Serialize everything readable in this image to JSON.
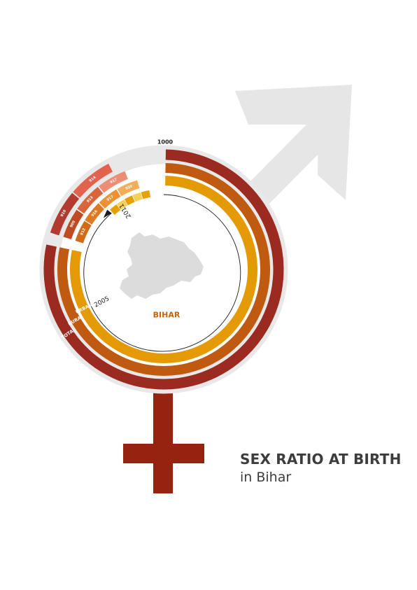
{
  "chart_data": {
    "type": "radial-bar",
    "title": "SEX RATIO AT BIRTH",
    "subtitle": "in Bihar",
    "region_label": "BIHAR",
    "scale_max_label": "1000",
    "rmax": 1000,
    "start_year_label": "2005",
    "end_year_label": "2011",
    "series": [
      {
        "name": "TOTAL",
        "color": "#9b2a20",
        "labels": [
          "910",
          "914"
        ],
        "segment_colors": [
          "#b23a2e",
          "#e3614f"
        ]
      },
      {
        "name": "RURAL",
        "color": "#bf5a10",
        "labels": [
          "909",
          "913",
          "917"
        ],
        "segment_colors": [
          "#c14a25",
          "#d9653a",
          "#ee8d76"
        ]
      },
      {
        "name": "URBAN",
        "color": "#e49a05",
        "labels": [
          "912",
          "916",
          "917",
          "920"
        ],
        "segment_colors": [
          "#d36a17",
          "#e07a22",
          "#ec9235",
          "#f3ad56"
        ]
      }
    ],
    "inner_series": {
      "color": "#f0b400",
      "labels": [
        "876",
        "880",
        "884",
        "886",
        "890"
      ]
    }
  },
  "colors": {
    "male_symbol": "#e6e6e6",
    "cross": "#95230f",
    "track": "#e8e8e8",
    "map": "#dcdcdc",
    "region_label": "#c8620a"
  }
}
